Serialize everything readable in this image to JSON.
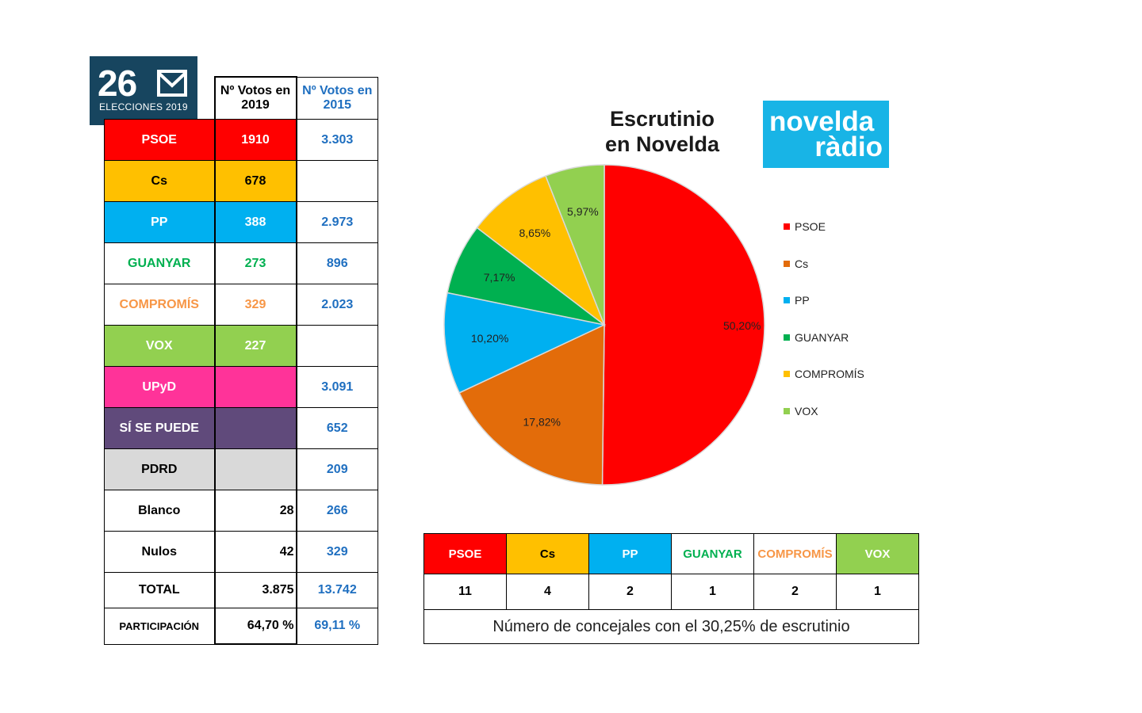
{
  "logo": {
    "number": "26",
    "subtitle": "ELECCIONES 2019"
  },
  "table": {
    "header_2019": "Nº Votos en 2019",
    "header_2015": "Nº Votos en 2015",
    "rows": [
      {
        "label": "PSOE",
        "v2019": "1910",
        "v2015": "3.303",
        "bg": "#ff0000",
        "fg": "#ffffff",
        "bg19": "#ff0000",
        "fg19": "#ffffff"
      },
      {
        "label": "Cs",
        "v2019": "678",
        "v2015": "",
        "bg": "#ffc000",
        "fg": "#000000",
        "bg19": "#ffc000",
        "fg19": "#000000"
      },
      {
        "label": "PP",
        "v2019": "388",
        "v2015": "2.973",
        "bg": "#00b0f0",
        "fg": "#ffffff",
        "bg19": "#00b0f0",
        "fg19": "#ffffff"
      },
      {
        "label": "GUANYAR",
        "v2019": "273",
        "v2015": "896",
        "bg": "#ffffff",
        "fg": "#00b050",
        "bg19": "#ffffff",
        "fg19": "#00b050"
      },
      {
        "label": "COMPROMÍS",
        "v2019": "329",
        "v2015": "2.023",
        "bg": "#ffffff",
        "fg": "#f79646",
        "bg19": "#ffffff",
        "fg19": "#f79646"
      },
      {
        "label": "VOX",
        "v2019": "227",
        "v2015": "",
        "bg": "#92d050",
        "fg": "#ffffff",
        "bg19": "#92d050",
        "fg19": "#ffffff"
      },
      {
        "label": "UPyD",
        "v2019": "",
        "v2015": "3.091",
        "bg": "#ff3399",
        "fg": "#ffffff",
        "bg19": "#ff3399",
        "fg19": "#ffffff"
      },
      {
        "label": "SÍ SE PUEDE",
        "v2019": "",
        "v2015": "652",
        "bg": "#604a7b",
        "fg": "#ffffff",
        "bg19": "#604a7b",
        "fg19": "#ffffff"
      },
      {
        "label": "PDRD",
        "v2019": "",
        "v2015": "209",
        "bg": "#d9d9d9",
        "fg": "#000000",
        "bg19": "#d9d9d9",
        "fg19": "#000000"
      },
      {
        "label": "Blanco",
        "v2019": "28",
        "v2015": "266",
        "bg": "#ffffff",
        "fg": "#000000",
        "bg19": "#ffffff",
        "fg19": "#000000",
        "align19": "right"
      },
      {
        "label": "Nulos",
        "v2019": "42",
        "v2015": "329",
        "bg": "#ffffff",
        "fg": "#000000",
        "bg19": "#ffffff",
        "fg19": "#000000",
        "align19": "right"
      },
      {
        "label": "TOTAL",
        "v2019": "3.875",
        "v2015": "13.742",
        "bg": "#ffffff",
        "fg": "#000000",
        "bg19": "#ffffff",
        "fg19": "#000000",
        "align19": "right"
      },
      {
        "label": "PARTICIPACIÓN",
        "v2019": "64,70 %",
        "v2015": "69,11 %",
        "bg": "#ffffff",
        "fg": "#000000",
        "bg19": "#ffffff",
        "fg19": "#000000",
        "align19": "right",
        "small": true
      }
    ]
  },
  "chart_title_line1": "Escrutinio",
  "chart_title_line2": "en Novelda",
  "radio_logo": {
    "line1": "novelda",
    "line2": "ràdio"
  },
  "chart_data": {
    "type": "pie",
    "title": "Escrutinio en Novelda",
    "labels": [
      "PSOE",
      "Cs",
      "PP",
      "GUANYAR",
      "COMPROMÍS",
      "VOX"
    ],
    "values": [
      50.2,
      17.82,
      10.2,
      7.17,
      8.65,
      5.97
    ],
    "value_labels": [
      "50,20%",
      "17,82%",
      "10,20%",
      "7,17%",
      "8,65%",
      "5,97%"
    ],
    "colors": [
      "#ff0000",
      "#e36c0a",
      "#00b0f0",
      "#00b050",
      "#ffc000",
      "#92d050"
    ],
    "legend_position": "right"
  },
  "seats": {
    "parties": [
      {
        "label": "PSOE",
        "seats": "11",
        "bg": "#ff0000",
        "fg": "#ffffff"
      },
      {
        "label": "Cs",
        "seats": "4",
        "bg": "#ffc000",
        "fg": "#000000"
      },
      {
        "label": "PP",
        "seats": "2",
        "bg": "#00b0f0",
        "fg": "#ffffff"
      },
      {
        "label": "GUANYAR",
        "seats": "1",
        "bg": "#ffffff",
        "fg": "#00b050"
      },
      {
        "label": "COMPROMÍS",
        "seats": "2",
        "bg": "#ffffff",
        "fg": "#f79646"
      },
      {
        "label": "VOX",
        "seats": "1",
        "bg": "#92d050",
        "fg": "#ffffff"
      }
    ],
    "note": "Número de concejales con el 30,25% de escrutinio"
  }
}
